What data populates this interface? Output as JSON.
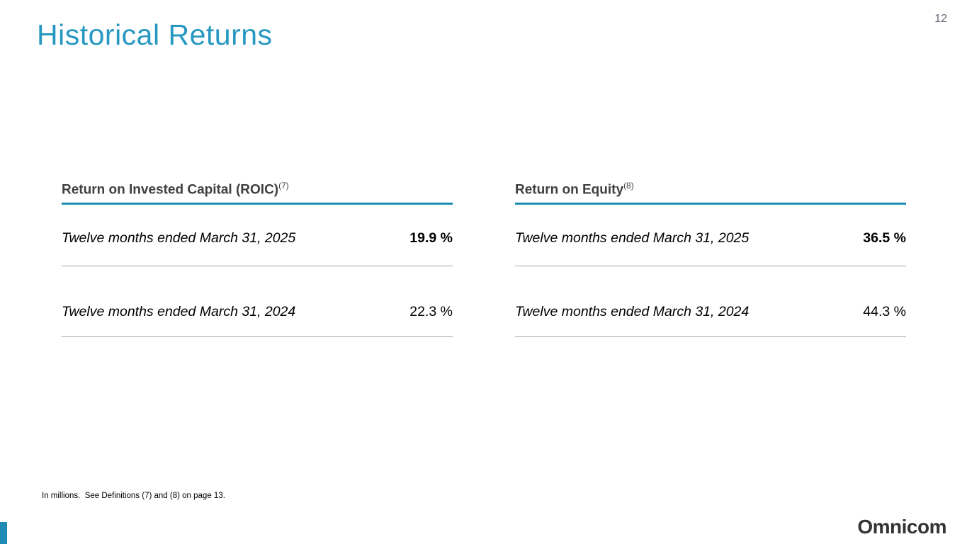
{
  "page": {
    "number": "12"
  },
  "title": "Historical Returns",
  "sections": [
    {
      "heading": "Return on Invested Capital (ROIC)",
      "heading_superscript": "(7)",
      "rows": [
        {
          "label": "Twelve months ended March 31, 2025",
          "value": "19.9 %",
          "emphasis": "bold"
        },
        {
          "label": "Twelve months ended March 31, 2024",
          "value": "22.3 %",
          "emphasis": "regular"
        }
      ]
    },
    {
      "heading": "Return on Equity",
      "heading_superscript": "(8)",
      "rows": [
        {
          "label": "Twelve months ended March 31, 2025",
          "value": "36.5 %",
          "emphasis": "bold"
        },
        {
          "label": "Twelve months ended March 31, 2024",
          "value": "44.3 %",
          "emphasis": "regular"
        }
      ]
    }
  ],
  "footnote": "In millions.  See Definitions (7) and (8) on page 13.",
  "logo_text": "Omnicom",
  "colors": {
    "accent_teal": "#2798C2",
    "accent_underline": "#1E8CB4",
    "divider_gray": "#A6A6A6",
    "page_number_gray": "#6A6A7A",
    "logo_dark": "#333333"
  }
}
